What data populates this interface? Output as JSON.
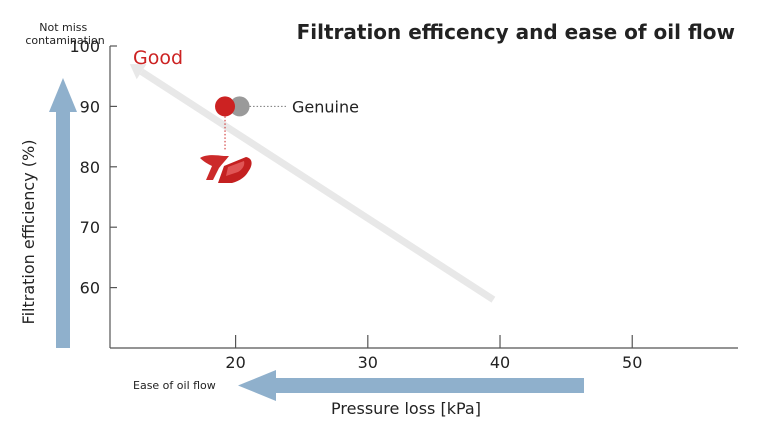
{
  "chart_data": {
    "type": "scatter",
    "title": "Filtration efficency and ease of oil flow",
    "xlabel": "Pressure loss [kPa]",
    "ylabel": "Filtration efficiency (%)",
    "xlim": [
      10.5,
      58
    ],
    "ylim": [
      50,
      100
    ],
    "x_ticks": [
      20,
      30,
      40,
      50
    ],
    "y_ticks": [
      60,
      70,
      80,
      90,
      100
    ],
    "grid": false,
    "series": [
      {
        "name": "Genuine",
        "x": 20.3,
        "y": 90,
        "color": "#9a9a9a"
      },
      {
        "name": "",
        "x": 19.2,
        "y": 90,
        "color": "#cc2222",
        "marker_note": "logo-icon"
      }
    ],
    "annotations": {
      "y_top_note": "Not miss\ncontamination",
      "good_label": "Good",
      "good_color": "#cc2222",
      "ease_label": "Ease of oil flow"
    },
    "arrow_color": "#8fb0cc",
    "trend_arrow": {
      "from": [
        39.5,
        58
      ],
      "to": [
        12,
        97
      ]
    }
  }
}
